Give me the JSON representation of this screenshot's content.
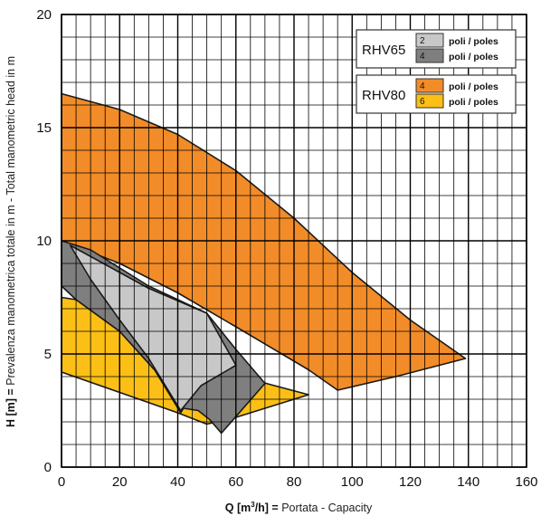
{
  "chart_data": {
    "type": "area",
    "xlim": [
      0,
      160
    ],
    "ylim": [
      0,
      20
    ],
    "x_ticks": [
      "0",
      "20",
      "40",
      "60",
      "80",
      "100",
      "120",
      "140",
      "160"
    ],
    "y_ticks": [
      "0",
      "5",
      "10",
      "15",
      "20"
    ],
    "grid": true,
    "xlabel": {
      "bold": "Q [m",
      "sup": "3",
      "bold_end": "/h] =",
      "rest": " Portata  -  Capacity"
    },
    "ylabel": {
      "bold": "H [m] =",
      "rest": " Prevalenza manometrica totale in m  -  Total manometric head in m"
    },
    "legend": {
      "placement": "top-right",
      "groups": [
        {
          "title": "RHV65",
          "entries": [
            {
              "num": "2",
              "text": "poli / poles",
              "color": "#c8c8c8"
            },
            {
              "num": "4",
              "text": "poli / poles",
              "color": "#7f7f7f"
            }
          ]
        },
        {
          "title": "RHV80",
          "entries": [
            {
              "num": "4",
              "text": "poli / poles",
              "color": "#f28c28"
            },
            {
              "num": "6",
              "text": "poli / poles",
              "color": "#fbbf16"
            }
          ]
        }
      ]
    },
    "regions": [
      {
        "color": "#f28c28",
        "points": [
          [
            0,
            16.5
          ],
          [
            20,
            15.8
          ],
          [
            40,
            14.7
          ],
          [
            60,
            13.1
          ],
          [
            80,
            11.0
          ],
          [
            100,
            8.6
          ],
          [
            120,
            6.5
          ],
          [
            139,
            4.8
          ],
          [
            127,
            4.4
          ],
          [
            115,
            4.0
          ],
          [
            95,
            3.4
          ],
          [
            85,
            4.3
          ],
          [
            60,
            6.2
          ],
          [
            40,
            7.7
          ],
          [
            20,
            9.0
          ],
          [
            0,
            10.0
          ]
        ]
      },
      {
        "color": "#fbbf16",
        "points": [
          [
            0,
            7.5
          ],
          [
            5,
            7.4
          ],
          [
            20,
            6.0
          ],
          [
            32,
            4.3
          ],
          [
            50,
            4.4
          ],
          [
            85,
            3.2
          ],
          [
            60,
            2.2
          ],
          [
            50,
            1.9
          ],
          [
            40,
            2.4
          ],
          [
            20,
            3.3
          ],
          [
            0,
            4.2
          ]
        ]
      },
      {
        "color": "#7f7f7f",
        "points": [
          [
            0,
            10.0
          ],
          [
            0,
            8.0
          ],
          [
            5,
            7.4
          ],
          [
            20,
            6.0
          ],
          [
            32,
            4.3
          ],
          [
            41,
            2.4
          ],
          [
            42,
            2.6
          ],
          [
            47,
            2.5
          ],
          [
            49,
            2.3
          ],
          [
            51,
            2.1
          ],
          [
            55,
            1.5
          ],
          [
            70,
            3.7
          ],
          [
            60,
            5.2
          ],
          [
            50,
            6.8
          ],
          [
            30,
            8.0
          ],
          [
            10,
            9.6
          ]
        ]
      },
      {
        "color": "#c8c8c8",
        "points": [
          [
            3,
            9.8
          ],
          [
            30,
            7.9
          ],
          [
            50,
            6.8
          ],
          [
            60,
            4.5
          ],
          [
            48,
            3.6
          ],
          [
            41,
            2.5
          ],
          [
            30,
            4.8
          ],
          [
            20,
            6.5
          ],
          [
            10,
            8.3
          ]
        ]
      }
    ]
  }
}
